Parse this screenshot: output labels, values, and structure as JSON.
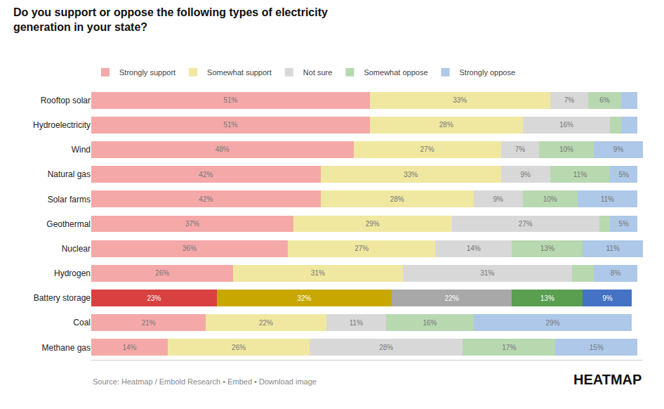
{
  "chart_data": {
    "type": "bar",
    "orientation": "horizontal",
    "stacked": true,
    "title": "Do you support or oppose the following types of electricity\ngeneration in your state?",
    "categories": [
      "Rooftop solar",
      "Hydroelectricity",
      "Wind",
      "Natural gas",
      "Solar farms",
      "Geothermal",
      "Nuclear",
      "Hydrogen",
      "Battery storage",
      "Coal",
      "Methane gas"
    ],
    "series": [
      {
        "name": "Strongly support",
        "colors": [
          "#f4a8a8",
          "#f4a8a8",
          "#f4a8a8",
          "#f4a8a8",
          "#f4a8a8",
          "#f4a8a8",
          "#f4a8a8",
          "#f4a8a8",
          "#d94040",
          "#f4a8a8",
          "#f4a8a8"
        ],
        "values": [
          51,
          51,
          48,
          42,
          42,
          37,
          36,
          26,
          23,
          21,
          14
        ],
        "value_labels": [
          "51%",
          "51%",
          "48%",
          "42%",
          "42%",
          "37%",
          "36%",
          "26%",
          "23%",
          "21%",
          "14%"
        ]
      },
      {
        "name": "Somewhat support",
        "colors": [
          "#f0e8a0",
          "#f0e8a0",
          "#f0e8a0",
          "#f0e8a0",
          "#f0e8a0",
          "#f0e8a0",
          "#f0e8a0",
          "#f0e8a0",
          "#c8a800",
          "#f0e8a0",
          "#f0e8a0"
        ],
        "values": [
          33,
          28,
          27,
          33,
          28,
          29,
          27,
          31,
          32,
          22,
          26
        ],
        "value_labels": [
          "33%",
          "28%",
          "27%",
          "33%",
          "28%",
          "29%",
          "27%",
          "31%",
          "32%",
          "22%",
          "26%"
        ]
      },
      {
        "name": "Not sure",
        "colors": [
          "#d8d8d8",
          "#d8d8d8",
          "#d8d8d8",
          "#d8d8d8",
          "#d8d8d8",
          "#d8d8d8",
          "#d8d8d8",
          "#d8d8d8",
          "#a8a8a8",
          "#d8d8d8",
          "#d8d8d8"
        ],
        "values": [
          7,
          16,
          7,
          9,
          9,
          27,
          14,
          31,
          22,
          11,
          28
        ],
        "value_labels": [
          "7%",
          "16%",
          "7%",
          "9%",
          "9%",
          "27%",
          "14%",
          "31%",
          "22%",
          "11%",
          "28%"
        ]
      },
      {
        "name": "Somewhat oppose",
        "colors": [
          "#b8d8b0",
          "#b8d8b0",
          "#b8d8b0",
          "#b8d8b0",
          "#b8d8b0",
          "#b8d8b0",
          "#b8d8b0",
          "#b8d8b0",
          "#5a9e50",
          "#b8d8b0",
          "#b8d8b0"
        ],
        "values": [
          6,
          2,
          10,
          11,
          10,
          2,
          13,
          4,
          13,
          16,
          17
        ],
        "value_labels": [
          "6%",
          null,
          "10%",
          "11%",
          "10%",
          null,
          "13%",
          null,
          "13%",
          "16%",
          "17%"
        ]
      },
      {
        "name": "Strongly oppose",
        "colors": [
          "#adc8e8",
          "#adc8e8",
          "#adc8e8",
          "#adc8e8",
          "#adc8e8",
          "#adc8e8",
          "#adc8e8",
          "#adc8e8",
          "#4472c4",
          "#adc8e8",
          "#adc8e8"
        ],
        "values": [
          3,
          3,
          9,
          5,
          11,
          5,
          11,
          8,
          9,
          29,
          15
        ],
        "value_labels": [
          null,
          null,
          "9%",
          "5%",
          "11%",
          "5%",
          "11%",
          "8%",
          "9%",
          "29%",
          "15%"
        ]
      }
    ],
    "xlim": [
      0,
      101
    ],
    "tick_labels": "y",
    "grid": false,
    "data_labels": true,
    "legend": "top",
    "annotations": [
      "Source: Heatmap / Embold Research • Embed • Download image",
      "HEATMAP"
    ]
  }
}
